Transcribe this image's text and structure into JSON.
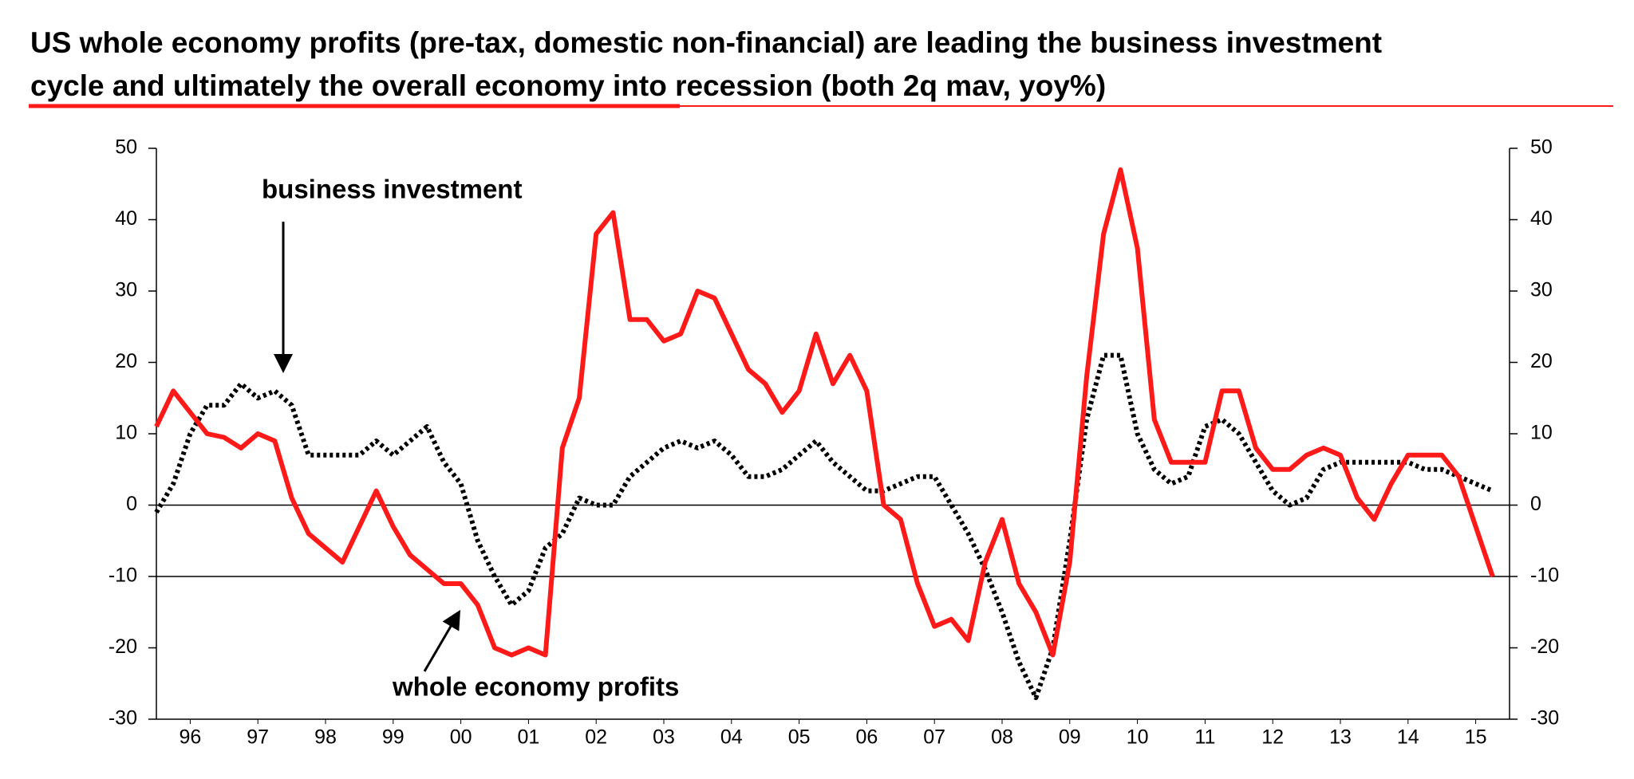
{
  "chart_data": {
    "type": "line",
    "title": "US whole economy profits (pre-tax, domestic non-financial) are leading the business investment",
    "subtitle": "cycle and ultimately the overall economy into recession (both 2q mav, yoy%)",
    "annotations": [
      "business investment",
      "whole economy profits"
    ],
    "x": [
      1996,
      1996.25,
      1996.5,
      1996.75,
      1997,
      1997.25,
      1997.5,
      1997.75,
      1998,
      1998.25,
      1998.5,
      1998.75,
      1999,
      1999.25,
      1999.5,
      1999.75,
      2000,
      2000.25,
      2000.5,
      2000.75,
      2001,
      2001.25,
      2001.5,
      2001.75,
      2002,
      2002.25,
      2002.5,
      2002.75,
      2003,
      2003.25,
      2003.5,
      2003.75,
      2004,
      2004.25,
      2004.5,
      2004.75,
      2005,
      2005.25,
      2005.5,
      2005.75,
      2006,
      2006.25,
      2006.5,
      2006.75,
      2007,
      2007.25,
      2007.5,
      2007.75,
      2008,
      2008.25,
      2008.5,
      2008.75,
      2009,
      2009.25,
      2009.5,
      2009.75,
      2010,
      2010.25,
      2010.5,
      2010.75,
      2011,
      2011.25,
      2011.5,
      2011.75,
      2012,
      2012.25,
      2012.5,
      2012.75,
      2013,
      2013.25,
      2013.5,
      2013.75,
      2014,
      2014.25,
      2014.5,
      2014.75,
      2015,
      2015.25,
      2015.5,
      2015.75
    ],
    "series": [
      {
        "name": "whole economy profits",
        "color": "#ff1a1a",
        "style": "solid",
        "values": [
          11,
          16,
          13,
          10,
          9.5,
          8,
          10,
          9,
          1,
          -4,
          -6,
          -8,
          -3,
          2,
          -3,
          -7,
          -9,
          -11,
          -11,
          -14,
          -20,
          -21,
          -20,
          -21,
          8,
          15,
          38,
          41,
          26,
          26,
          23,
          24,
          30,
          29,
          24,
          19,
          17,
          13,
          16,
          24,
          17,
          21,
          16,
          0,
          -2,
          -11,
          -17,
          -16,
          -19,
          -8,
          -2,
          -11,
          -15,
          -21,
          -8,
          18,
          38,
          47,
          36,
          12,
          6,
          6,
          6,
          16,
          16,
          8,
          5,
          5,
          7,
          8,
          7,
          1,
          -2,
          3,
          7,
          7,
          7,
          4,
          -3,
          -10
        ]
      },
      {
        "name": "business investment",
        "color": "#000000",
        "style": "dotted",
        "values": [
          -1,
          3,
          10,
          14,
          14,
          17,
          15,
          16,
          14,
          7,
          7,
          7,
          7,
          9,
          7,
          9,
          11,
          6,
          3,
          -5,
          -10,
          -14,
          -12,
          -6,
          -4,
          1,
          0,
          0,
          4,
          6,
          8,
          9,
          8,
          9,
          7,
          4,
          4,
          5,
          7,
          9,
          6,
          4,
          2,
          2,
          3,
          4,
          4,
          0,
          -4,
          -9,
          -15,
          -22,
          -27,
          -20,
          -5,
          12,
          21,
          21,
          10,
          5,
          3,
          4,
          11,
          12,
          10,
          6,
          2,
          0,
          1,
          5,
          6,
          6,
          6,
          6,
          6,
          5,
          5,
          4,
          3,
          2
        ]
      }
    ],
    "xlim": [
      1996,
      2016
    ],
    "xticks": [
      {
        "value": 1996.5,
        "label": "96"
      },
      {
        "value": 1997.5,
        "label": "97"
      },
      {
        "value": 1998.5,
        "label": "98"
      },
      {
        "value": 1999.5,
        "label": "99"
      },
      {
        "value": 2000.5,
        "label": "00"
      },
      {
        "value": 2001.5,
        "label": "01"
      },
      {
        "value": 2002.5,
        "label": "02"
      },
      {
        "value": 2003.5,
        "label": "03"
      },
      {
        "value": 2004.5,
        "label": "04"
      },
      {
        "value": 2005.5,
        "label": "05"
      },
      {
        "value": 2006.5,
        "label": "06"
      },
      {
        "value": 2007.5,
        "label": "07"
      },
      {
        "value": 2008.5,
        "label": "08"
      },
      {
        "value": 2009.5,
        "label": "09"
      },
      {
        "value": 2010.5,
        "label": "10"
      },
      {
        "value": 2011.5,
        "label": "11"
      },
      {
        "value": 2012.5,
        "label": "12"
      },
      {
        "value": 2013.5,
        "label": "13"
      },
      {
        "value": 2014.5,
        "label": "14"
      },
      {
        "value": 2015.5,
        "label": "15"
      }
    ],
    "ylim": [
      -30,
      50
    ],
    "yticks": [
      -30,
      -20,
      -10,
      0,
      10,
      20,
      30,
      40,
      50
    ],
    "y2lim": [
      -30,
      50
    ],
    "y2ticks": [
      -30,
      -20,
      -10,
      0,
      10,
      20,
      30,
      40,
      50
    ],
    "reference_lines": [
      0,
      -10
    ]
  }
}
